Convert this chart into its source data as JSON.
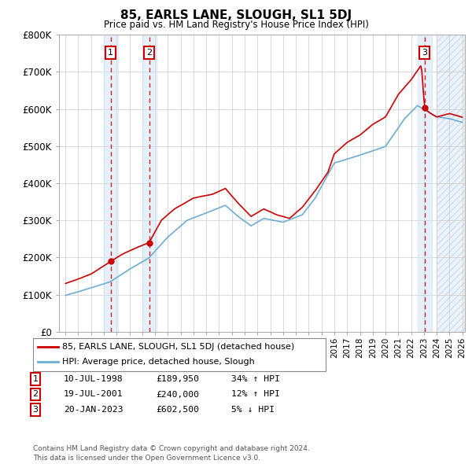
{
  "title": "85, EARLS LANE, SLOUGH, SL1 5DJ",
  "subtitle": "Price paid vs. HM Land Registry's House Price Index (HPI)",
  "ylim": [
    0,
    800000
  ],
  "yticks": [
    0,
    100000,
    200000,
    300000,
    400000,
    500000,
    600000,
    700000,
    800000
  ],
  "ytick_labels": [
    "£0",
    "£100K",
    "£200K",
    "£300K",
    "£400K",
    "£500K",
    "£600K",
    "£700K",
    "£800K"
  ],
  "hpi_color": "#6baed6",
  "price_color": "#cc0000",
  "purchase_xvals": [
    1998.53,
    2001.54,
    2023.05
  ],
  "purchase_yvals": [
    189950,
    240000,
    602500
  ],
  "purchase_labels": [
    "1",
    "2",
    "3"
  ],
  "purchase_dates": [
    "10-JUL-1998",
    "19-JUL-2001",
    "20-JAN-2023"
  ],
  "purchase_prices": [
    "£189,950",
    "£240,000",
    "£602,500"
  ],
  "purchase_hpi_txt": [
    "34% ↑ HPI",
    "12% ↑ HPI",
    "5% ↓ HPI"
  ],
  "legend_line1": "85, EARLS LANE, SLOUGH, SL1 5DJ (detached house)",
  "legend_line2": "HPI: Average price, detached house, Slough",
  "footer": "Contains HM Land Registry data © Crown copyright and database right 2024.\nThis data is licensed under the Open Government Licence v3.0.",
  "bg_color": "#ffffff",
  "grid_color": "#cccccc",
  "future_start": 2024.0,
  "xmin": 1994.5,
  "xmax": 2026.2
}
